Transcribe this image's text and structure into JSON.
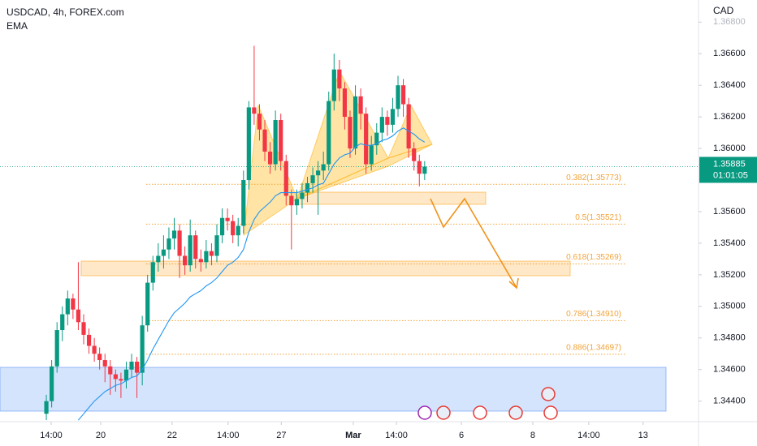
{
  "chart_data": {
    "type": "candlestick",
    "title": "USDCAD, 4h, FOREX.com",
    "y_axis_label": "CAD",
    "up_color": "#089981",
    "down_color": "#f23645",
    "xlim": [
      -8.7,
      122.4
    ],
    "xticks": [
      {
        "value": 0.9,
        "label": "14:00"
      },
      {
        "value": 10.2,
        "label": "20"
      },
      {
        "value": 23.6,
        "label": "22"
      },
      {
        "value": 34.1,
        "label": "14:00"
      },
      {
        "value": 44.1,
        "label": "27"
      },
      {
        "value": 57.6,
        "label": "Mar"
      },
      {
        "value": 65.7,
        "label": "14:00"
      },
      {
        "value": 77.9,
        "label": "6"
      },
      {
        "value": 91.3,
        "label": "8"
      },
      {
        "value": 101.8,
        "label": "14:00"
      },
      {
        "value": 112,
        "label": "13"
      }
    ],
    "ylim": [
      1.3427,
      1.3694
    ],
    "yticks": [
      {
        "value": 1.368,
        "label": "1.36800"
      },
      {
        "value": 1.366,
        "label": "1.36600"
      },
      {
        "value": 1.364,
        "label": "1.36400"
      },
      {
        "value": 1.362,
        "label": "1.36200"
      },
      {
        "value": 1.36,
        "label": "1.36000"
      },
      {
        "value": 1.356,
        "label": "1.35600"
      },
      {
        "value": 1.354,
        "label": "1.35400"
      },
      {
        "value": 1.352,
        "label": "1.35200"
      },
      {
        "value": 1.35,
        "label": "1.35000"
      },
      {
        "value": 1.348,
        "label": "1.34800"
      },
      {
        "value": 1.346,
        "label": "1.34600"
      },
      {
        "value": 1.344,
        "label": "1.34400"
      }
    ],
    "ohlc": [
      [
        1.3432,
        1.3444,
        1.3428,
        1.344
      ],
      [
        1.344,
        1.3466,
        1.3436,
        1.3462
      ],
      [
        1.3462,
        1.349,
        1.3458,
        1.3485
      ],
      [
        1.3485,
        1.35,
        1.3478,
        1.3495
      ],
      [
        1.3495,
        1.351,
        1.3488,
        1.3505
      ],
      [
        1.3505,
        1.3508,
        1.3492,
        1.3498
      ],
      [
        1.3498,
        1.3528,
        1.3485,
        1.349
      ],
      [
        1.349,
        1.3495,
        1.3476,
        1.3482
      ],
      [
        1.3482,
        1.3486,
        1.347,
        1.3475
      ],
      [
        1.3475,
        1.348,
        1.3465,
        1.347
      ],
      [
        1.347,
        1.3474,
        1.346,
        1.3466
      ],
      [
        1.3466,
        1.347,
        1.3452,
        1.3462
      ],
      [
        1.3462,
        1.3466,
        1.3444,
        1.3457
      ],
      [
        1.3457,
        1.346,
        1.3446,
        1.3454
      ],
      [
        1.3454,
        1.3458,
        1.3442,
        1.3453
      ],
      [
        1.3453,
        1.3465,
        1.3448,
        1.346
      ],
      [
        1.346,
        1.347,
        1.3455,
        1.3465
      ],
      [
        1.3465,
        1.3468,
        1.3442,
        1.3458
      ],
      [
        1.3458,
        1.3494,
        1.345,
        1.3488
      ],
      [
        1.3488,
        1.352,
        1.3484,
        1.3515
      ],
      [
        1.3515,
        1.3532,
        1.351,
        1.3528
      ],
      [
        1.3528,
        1.354,
        1.3522,
        1.3532
      ],
      [
        1.3532,
        1.3545,
        1.3524,
        1.3536
      ],
      [
        1.3536,
        1.355,
        1.353,
        1.3543
      ],
      [
        1.3543,
        1.3556,
        1.3536,
        1.3548
      ],
      [
        1.3548,
        1.3552,
        1.3518,
        1.3532
      ],
      [
        1.3532,
        1.3538,
        1.352,
        1.3526
      ],
      [
        1.3526,
        1.3555,
        1.3522,
        1.3545
      ],
      [
        1.3545,
        1.3548,
        1.3524,
        1.353
      ],
      [
        1.353,
        1.3536,
        1.3522,
        1.3528
      ],
      [
        1.3528,
        1.3542,
        1.3524,
        1.3535
      ],
      [
        1.3535,
        1.354,
        1.3526,
        1.3532
      ],
      [
        1.3532,
        1.3552,
        1.3528,
        1.3545
      ],
      [
        1.3545,
        1.3562,
        1.354,
        1.3556
      ],
      [
        1.3556,
        1.3562,
        1.3548,
        1.3554
      ],
      [
        1.3554,
        1.3558,
        1.354,
        1.3545
      ],
      [
        1.3545,
        1.3556,
        1.3538,
        1.3551
      ],
      [
        1.3551,
        1.3586,
        1.3546,
        1.358
      ],
      [
        1.358,
        1.363,
        1.3574,
        1.3626
      ],
      [
        1.3626,
        1.3665,
        1.3615,
        1.3622
      ],
      [
        1.3622,
        1.3628,
        1.3605,
        1.3612
      ],
      [
        1.3612,
        1.3618,
        1.3592,
        1.3598
      ],
      [
        1.3598,
        1.3604,
        1.3584,
        1.359
      ],
      [
        1.359,
        1.3624,
        1.3586,
        1.3618
      ],
      [
        1.3618,
        1.3622,
        1.3586,
        1.3592
      ],
      [
        1.3592,
        1.3596,
        1.3564,
        1.357
      ],
      [
        1.357,
        1.3574,
        1.3536,
        1.3564
      ],
      [
        1.3564,
        1.3574,
        1.3558,
        1.3568
      ],
      [
        1.3568,
        1.3578,
        1.3562,
        1.3572
      ],
      [
        1.3572,
        1.3582,
        1.3566,
        1.3578
      ],
      [
        1.3578,
        1.3588,
        1.3572,
        1.3583
      ],
      [
        1.3583,
        1.3592,
        1.3558,
        1.3586
      ],
      [
        1.3586,
        1.3598,
        1.358,
        1.359
      ],
      [
        1.359,
        1.3636,
        1.3586,
        1.363
      ],
      [
        1.363,
        1.366,
        1.3624,
        1.365
      ],
      [
        1.365,
        1.3656,
        1.363,
        1.3638
      ],
      [
        1.3638,
        1.3642,
        1.3612,
        1.362
      ],
      [
        1.362,
        1.3624,
        1.3594,
        1.36
      ],
      [
        1.36,
        1.364,
        1.3596,
        1.3633
      ],
      [
        1.3633,
        1.3638,
        1.3612,
        1.3622
      ],
      [
        1.3622,
        1.3626,
        1.3584,
        1.359
      ],
      [
        1.359,
        1.3608,
        1.3586,
        1.3602
      ],
      [
        1.3602,
        1.3616,
        1.3596,
        1.361
      ],
      [
        1.361,
        1.3626,
        1.3604,
        1.362
      ],
      [
        1.362,
        1.3624,
        1.3608,
        1.3615
      ],
      [
        1.3615,
        1.3632,
        1.361,
        1.3625
      ],
      [
        1.3625,
        1.3646,
        1.362,
        1.364
      ],
      [
        1.364,
        1.3644,
        1.362,
        1.3628
      ],
      [
        1.3628,
        1.3632,
        1.3594,
        1.36
      ],
      [
        1.36,
        1.3604,
        1.3586,
        1.3592
      ],
      [
        1.3592,
        1.3596,
        1.3576,
        1.3584
      ],
      [
        1.3584,
        1.3592,
        1.358,
        1.35885
      ]
    ],
    "ema": {
      "name": "EMA",
      "color": "#2196f3",
      "values": [
        null,
        null,
        null,
        null,
        null,
        null,
        1.3428,
        1.3432,
        1.3436,
        1.344,
        1.3443,
        1.3446,
        1.3448,
        1.345,
        1.3451,
        1.3453,
        1.3455,
        1.3456,
        1.346,
        1.3466,
        1.3473,
        1.3479,
        1.3485,
        1.3491,
        1.3496,
        1.3499,
        1.3502,
        1.3506,
        1.3508,
        1.351,
        1.3513,
        1.3515,
        1.3518,
        1.3522,
        1.3526,
        1.3528,
        1.3531,
        1.3536,
        1.3547,
        1.3555,
        1.356,
        1.3563,
        1.3566,
        1.357,
        1.3572,
        1.3572,
        1.3572,
        1.3572,
        1.3573,
        1.3574,
        1.3575,
        1.3577,
        1.3578,
        1.3584,
        1.359,
        1.3594,
        1.3596,
        1.3597,
        1.3601,
        1.3603,
        1.3602,
        1.3602,
        1.3603,
        1.3605,
        1.3606,
        1.3608,
        1.3611,
        1.3613,
        1.3611,
        1.3609,
        1.3606,
        1.3604
      ]
    },
    "fib_levels": [
      {
        "label": "0.382(1.35773)",
        "value": 1.35773
      },
      {
        "label": "0.5(1.35521)",
        "value": 1.35521
      },
      {
        "label": "0.618(1.35269)",
        "value": 1.35269
      },
      {
        "label": "0.786(1.34910)",
        "value": 1.3491
      },
      {
        "label": "0.886(1.34697)",
        "value": 1.34697
      }
    ],
    "fib_color": "#f2a33a",
    "last_price": 1.35885,
    "countdown": "01:01:05"
  }
}
